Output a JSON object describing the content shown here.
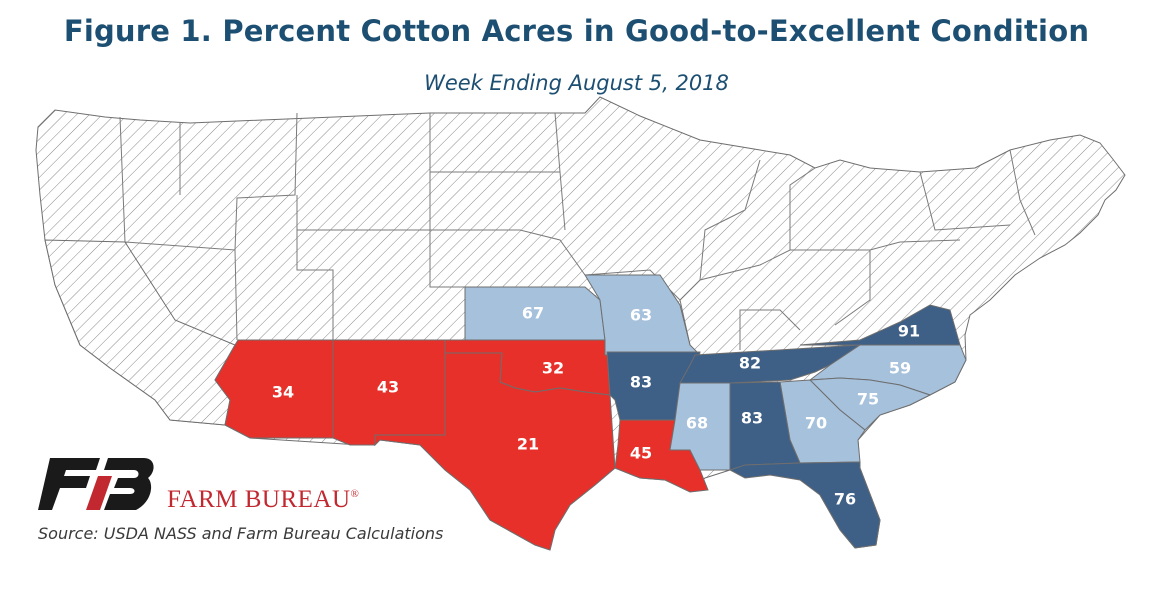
{
  "title": "Figure 1. Percent Cotton Acres in Good-to-Excellent Condition",
  "subtitle": "Week Ending August 5, 2018",
  "source": "Source: USDA NASS and Farm Bureau Calculations",
  "logo": {
    "text": "FARM BUREAU",
    "mark": "FB"
  },
  "colors": {
    "title": "#1c4f72",
    "red": "#e8302a",
    "dark_blue": "#3e5f86",
    "light_blue": "#a6c1dc",
    "brand_red": "#c2282f"
  },
  "chart_data": {
    "type": "choropleth",
    "measure": "percent good-to-excellent",
    "states": [
      {
        "state": "Arizona",
        "value": 34,
        "class": "red"
      },
      {
        "state": "New Mexico",
        "value": 43,
        "class": "red"
      },
      {
        "state": "Texas",
        "value": 21,
        "class": "red"
      },
      {
        "state": "Oklahoma",
        "value": 32,
        "class": "red"
      },
      {
        "state": "Louisiana",
        "value": 45,
        "class": "red"
      },
      {
        "state": "Kansas",
        "value": 67,
        "class": "light"
      },
      {
        "state": "Missouri",
        "value": 63,
        "class": "light"
      },
      {
        "state": "Mississippi",
        "value": 68,
        "class": "light"
      },
      {
        "state": "Georgia",
        "value": 70,
        "class": "light"
      },
      {
        "state": "South Carolina",
        "value": 75,
        "class": "light"
      },
      {
        "state": "North Carolina",
        "value": 59,
        "class": "light"
      },
      {
        "state": "Arkansas",
        "value": 83,
        "class": "dark"
      },
      {
        "state": "Alabama",
        "value": 83,
        "class": "dark"
      },
      {
        "state": "Tennessee",
        "value": 82,
        "class": "dark"
      },
      {
        "state": "Virginia",
        "value": 91,
        "class": "dark"
      },
      {
        "state": "Florida",
        "value": 76,
        "class": "dark"
      },
      {
        "state": "California",
        "value": null,
        "class": "none"
      }
    ]
  }
}
